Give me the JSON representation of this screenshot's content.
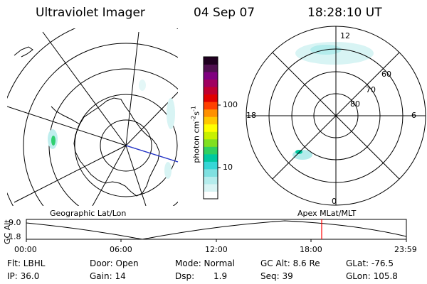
{
  "header": {
    "instrument": "Ultraviolet Imager",
    "date": "04 Sep 07",
    "time": "18:28:10 UT"
  },
  "colorbar": {
    "unit_label": "photon cm",
    "unit_exp1": "-2",
    "unit_mid": "s",
    "unit_exp2": "-1",
    "tick_upper": "100",
    "tick_lower": "10",
    "colors": [
      "#ffffff",
      "#d8f4f4",
      "#b4ecec",
      "#7fe0e0",
      "#36d6d6",
      "#00c8a0",
      "#30d060",
      "#80e020",
      "#c8f000",
      "#ffff00",
      "#ffc800",
      "#ff9000",
      "#ff4000",
      "#e00000",
      "#c00030",
      "#a00060",
      "#800080",
      "#501050",
      "#200020"
    ]
  },
  "left_map": {
    "label": "Geographic Lat/Lon"
  },
  "right_map": {
    "label": "Apex MLat/MLT",
    "mlt_12": "12",
    "mlt_18": "18",
    "mlt_6": "6",
    "mlt_0": "0",
    "lat_60": "60",
    "lat_70": "70",
    "lat_80": "80"
  },
  "altitude_plot": {
    "ylabel": "GC Alt",
    "y_top": "9.0",
    "y_bottom": "1.8",
    "x_ticks": [
      "00:00",
      "06:00",
      "12:00",
      "18:00",
      "23:59"
    ],
    "marker_color": "#ff0000"
  },
  "status": {
    "flt": "Flt: LBHL",
    "ip": "IP: 36.0",
    "door": "Door: Open",
    "gain": "Gain: 14",
    "mode": "Mode: Normal",
    "dsp_label": "Dsp:",
    "dsp_value": "1.9",
    "gc_alt": "GC Alt: 8.6 Re",
    "seq": "Seq: 39",
    "glat": "GLat: -76.5",
    "glon": "GLon: 105.8"
  }
}
